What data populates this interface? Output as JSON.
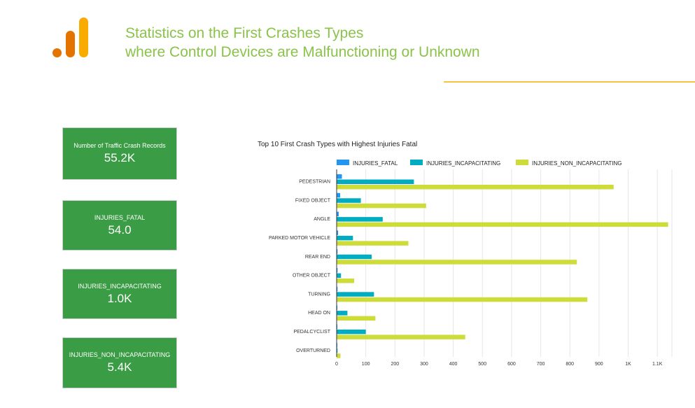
{
  "header": {
    "title_line1": "Statistics on the First Crashes Types",
    "title_line2": "where Control Devices are Malfunctioning or Unknown"
  },
  "colors": {
    "title": "#8bc34a",
    "card_bg": "#3a9c44",
    "accent_line": "#f6c343",
    "logo_orange": "#f9ab00",
    "logo_dark_orange": "#e37400"
  },
  "cards": [
    {
      "label": "Number of Traffic Crash Records",
      "value": "55.2K"
    },
    {
      "label": "INJURIES_FATAL",
      "value": "54.0"
    },
    {
      "label": "INJURIES_INCAPACITATING",
      "value": "1.0K"
    },
    {
      "label": "INJURIES_NON_INCAPACITATING",
      "value": "5.4K"
    }
  ],
  "chart_data": {
    "type": "bar",
    "orientation": "horizontal",
    "title": "Top 10 First Crash Types with Highest Injuries Fatal",
    "categories": [
      "PEDESTRIAN",
      "FIXED OBJECT",
      "ANGLE",
      "PARKED MOTOR VEHICLE",
      "REAR END",
      "OTHER OBJECT",
      "TURNING",
      "HEAD ON",
      "PEDALCYCLIST",
      "OVERTURNED"
    ],
    "series": [
      {
        "name": "INJURIES_FATAL",
        "color": "#2196f3",
        "values": [
          18,
          12,
          7,
          5,
          3,
          3,
          3,
          2,
          1,
          1
        ]
      },
      {
        "name": "INJURIES_INCAPACITATING",
        "color": "#00acc1",
        "values": [
          265,
          83,
          158,
          56,
          120,
          15,
          128,
          37,
          100,
          3
        ]
      },
      {
        "name": "INJURIES_NON_INCAPACITATING",
        "color": "#cddc39",
        "values": [
          950,
          307,
          1137,
          246,
          824,
          60,
          860,
          133,
          441,
          13
        ]
      }
    ],
    "xlim": [
      0,
      1150
    ],
    "xticks": [
      0,
      100,
      200,
      300,
      400,
      500,
      600,
      700,
      800,
      900,
      1000,
      1100
    ],
    "xtick_labels": [
      "0",
      "100",
      "200",
      "300",
      "400",
      "500",
      "600",
      "700",
      "800",
      "900",
      "1K",
      "1.1K"
    ],
    "grid": true,
    "legend_position": "top"
  }
}
